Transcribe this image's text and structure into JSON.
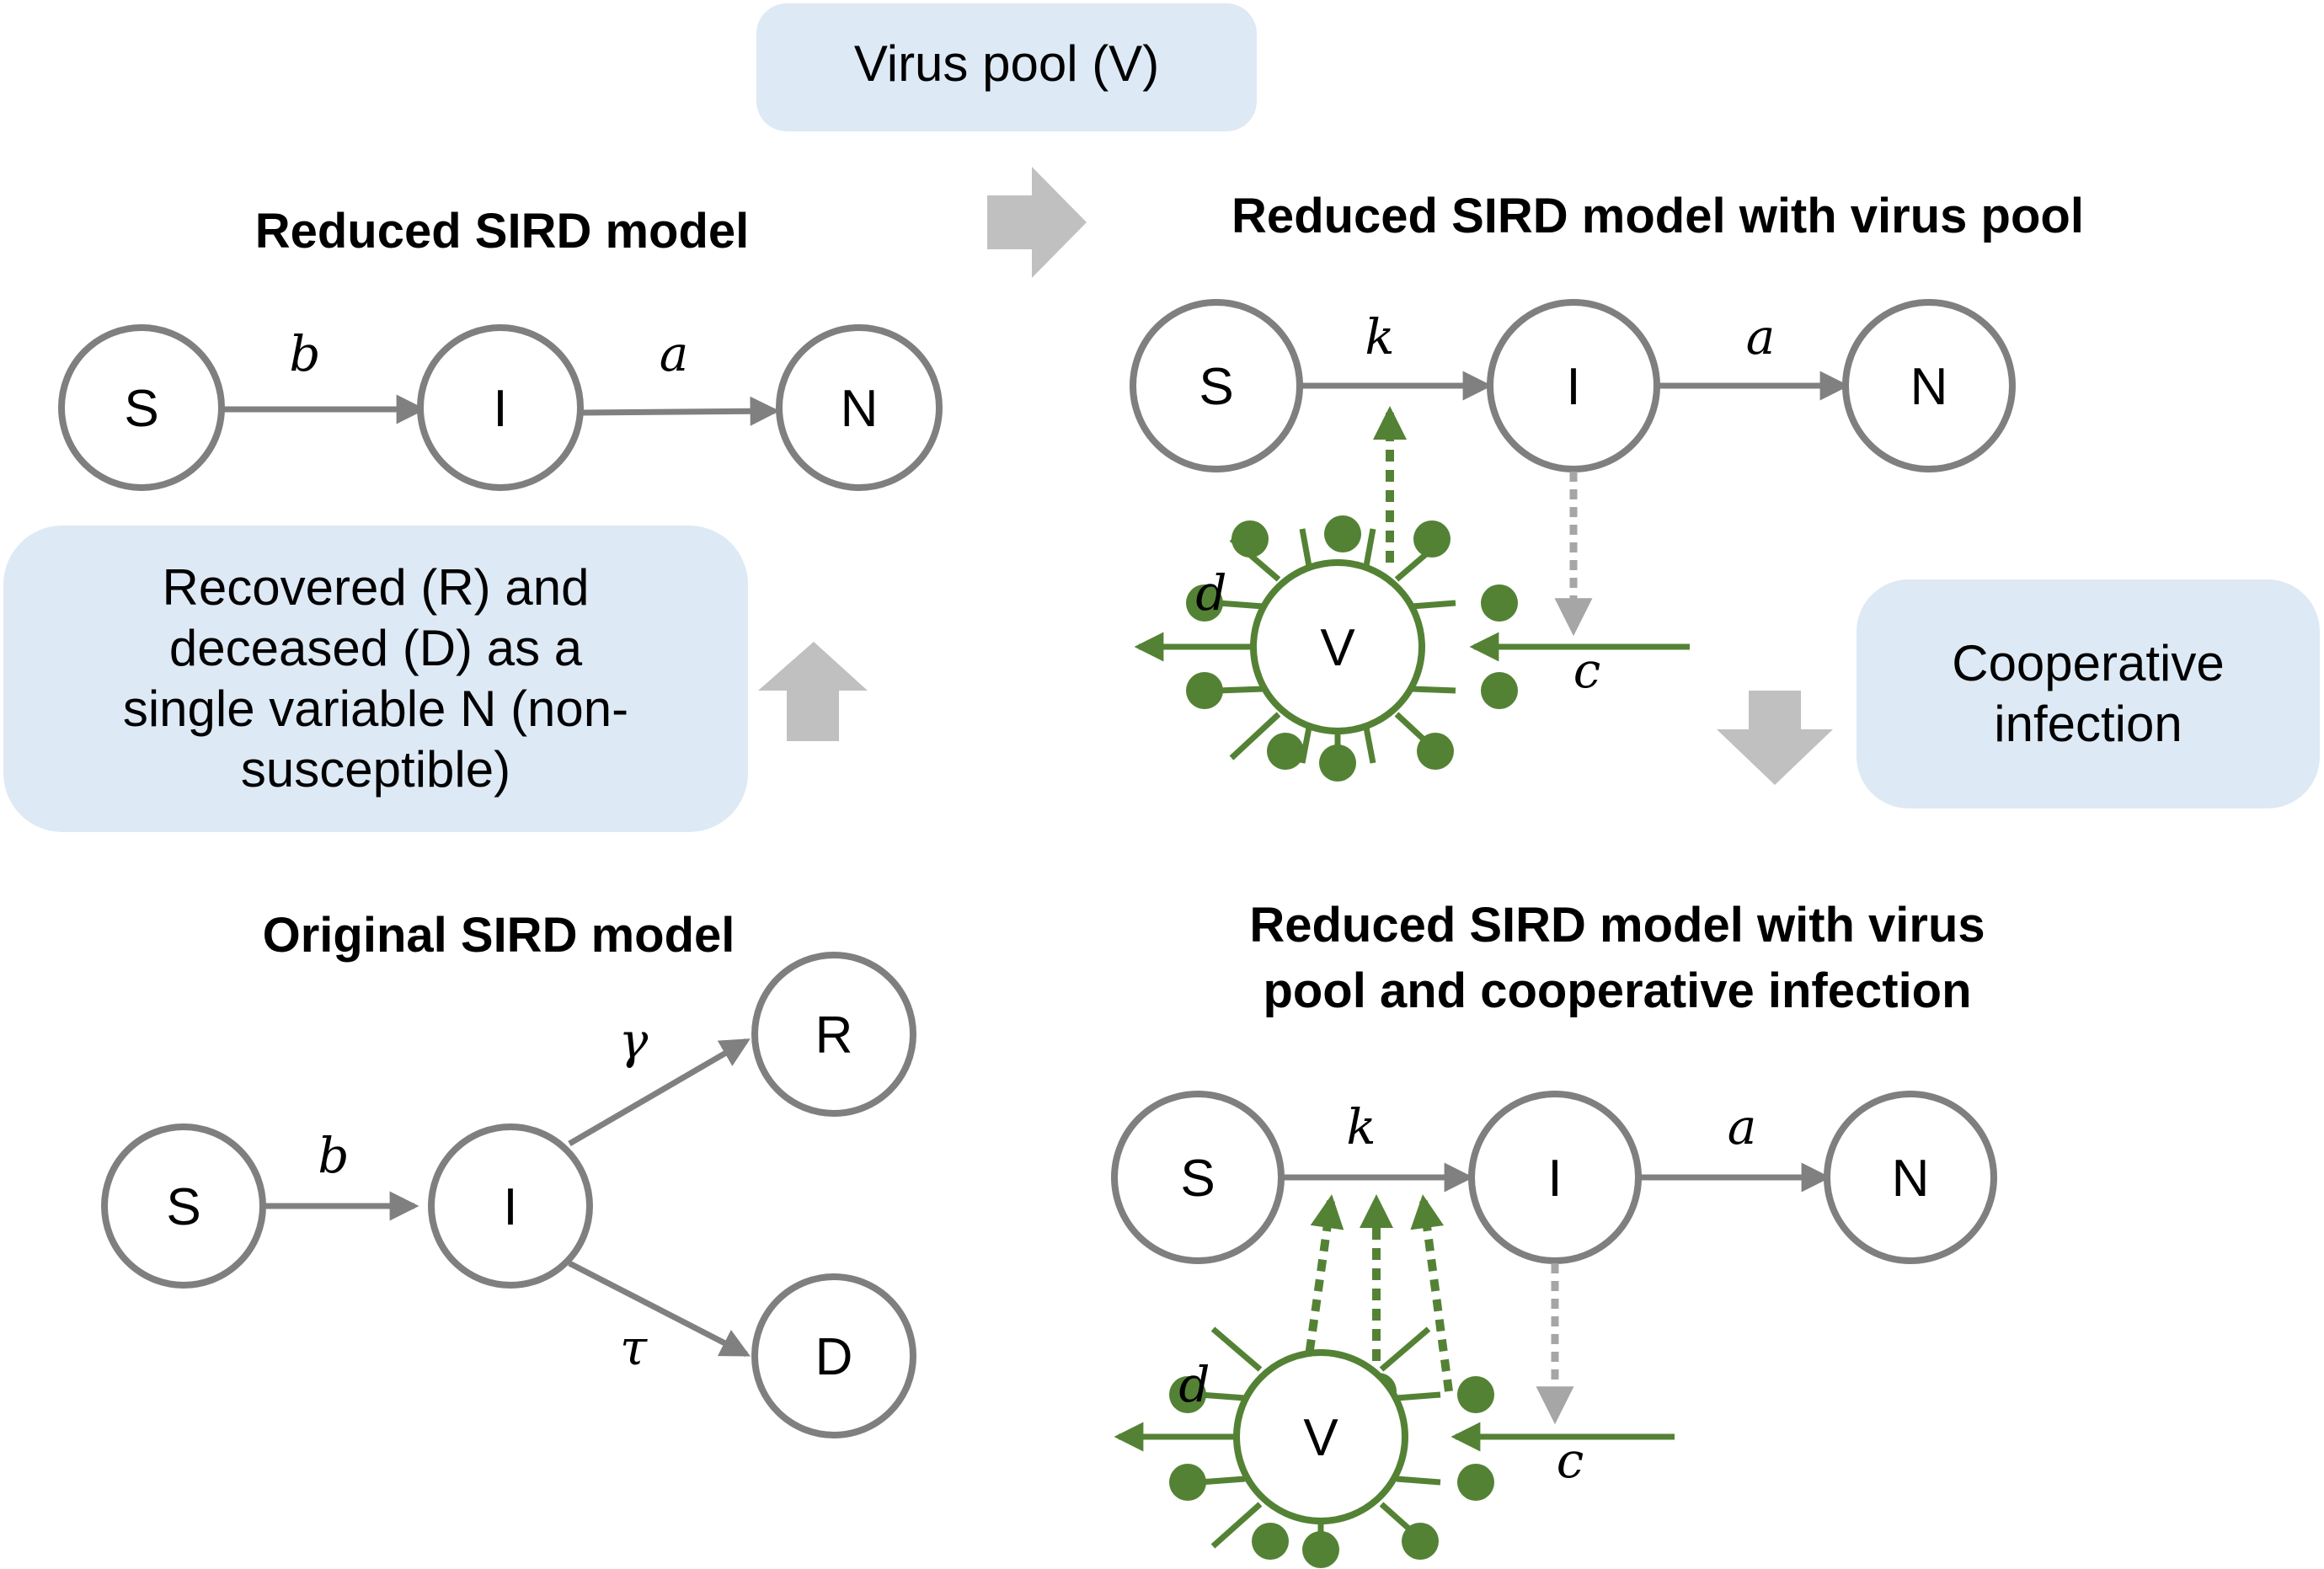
{
  "boxes": {
    "virus_pool": "Virus pool (V)",
    "recovered_lines": [
      "Recovered (R) and",
      "deceased (D) as a",
      "single variable N (non-",
      "susceptible)"
    ],
    "cooperative_lines": [
      "Cooperative",
      "infection"
    ]
  },
  "titles": {
    "reduced": "Reduced SIRD model",
    "reduced_virus": "Reduced SIRD model with virus pool",
    "original": "Original SIRD model",
    "cooperative_line1": "Reduced SIRD model with virus",
    "cooperative_line2": "pool and cooperative infection"
  },
  "nodes": {
    "S": "S",
    "I": "I",
    "N": "N",
    "R": "R",
    "D": "D",
    "V": "V"
  },
  "rates": {
    "b": "b",
    "a": "a",
    "k": "k",
    "c": "c",
    "d": "d",
    "gamma": "γ",
    "tau": "τ"
  },
  "colors": {
    "node_stroke": "#7f7f7f",
    "virus_green": "#548235",
    "box_fill": "#dde9f5",
    "block_arrow": "#c0c0c0"
  }
}
